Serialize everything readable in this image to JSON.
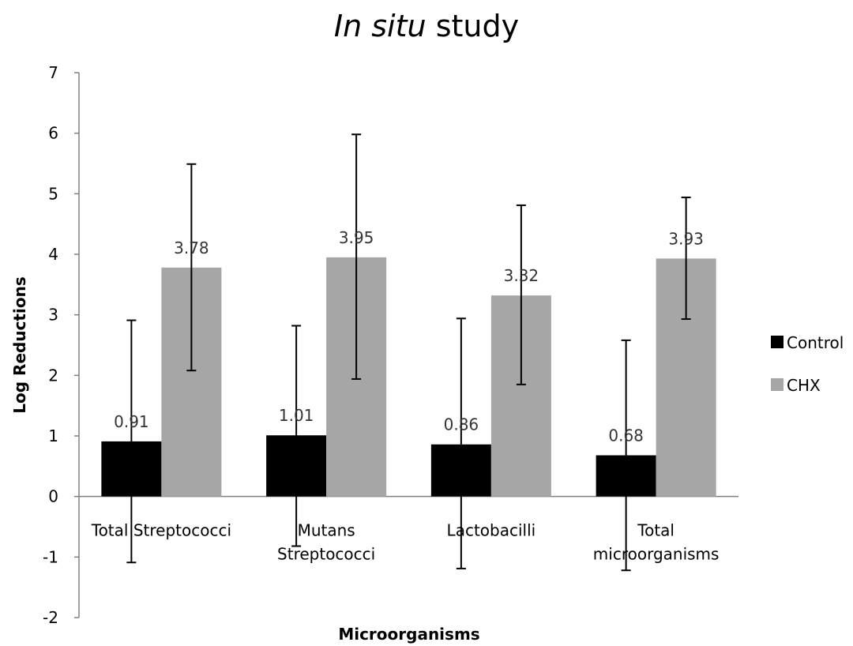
{
  "chart_data": {
    "type": "bar",
    "title": {
      "italic_part": "In situ",
      "regular_part": " study"
    },
    "xlabel": "Microorganisms",
    "ylabel": "Log Reductions",
    "ylim": [
      -2,
      7
    ],
    "yticks": [
      -2,
      -1,
      0,
      1,
      2,
      3,
      4,
      5,
      6,
      7
    ],
    "categories": [
      [
        "Total Streptococci"
      ],
      [
        "Mutans",
        "Streptococci"
      ],
      [
        "Lactobacilli"
      ],
      [
        "Total",
        "microorganisms"
      ]
    ],
    "series": [
      {
        "name": "Control",
        "color": "#000000",
        "values": [
          0.91,
          1.01,
          0.86,
          0.68
        ],
        "labels": [
          "0.91",
          "1.01",
          "0.86",
          "0.68"
        ],
        "error_low": [
          -1.09,
          -0.82,
          -1.19,
          -1.22
        ],
        "error_high": [
          2.91,
          2.82,
          2.94,
          2.58
        ]
      },
      {
        "name": "CHX",
        "color": "#a6a6a6",
        "values": [
          3.78,
          3.95,
          3.32,
          3.93
        ],
        "labels": [
          "3.78",
          "3.95",
          "3.32",
          "3.93"
        ],
        "error_low": [
          2.08,
          1.94,
          1.85,
          2.93
        ],
        "error_high": [
          5.49,
          5.98,
          4.81,
          4.94
        ]
      }
    ],
    "legend_position": "right",
    "grid": false
  }
}
